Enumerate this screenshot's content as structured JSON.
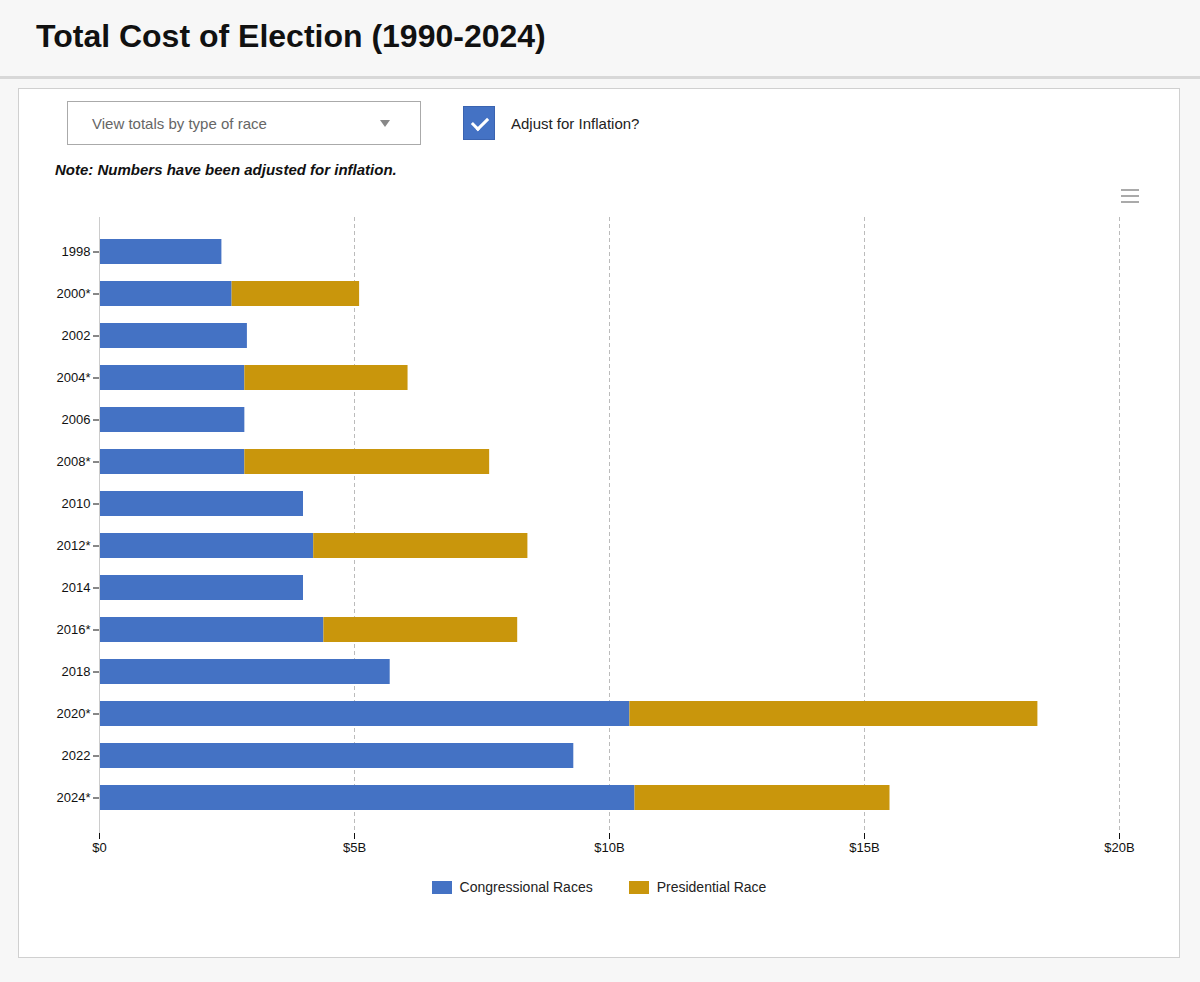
{
  "chart_data": {
    "type": "bar",
    "orientation": "horizontal",
    "stacked": true,
    "title": "Total Cost of Election (1990-2024)",
    "subtitle": "Note: Numbers have been adjusted for inflation.",
    "annotations": [
      "View totals by type of race",
      "Adjust for Inflation?"
    ],
    "categories": [
      "1998",
      "2000*",
      "2002",
      "2004*",
      "2006",
      "2008*",
      "2010",
      "2012*",
      "2014",
      "2016*",
      "2018",
      "2020*",
      "2022",
      "2024*"
    ],
    "series": [
      {
        "name": "Congressional Races",
        "color": "#4472c4",
        "values": [
          2.4,
          2.6,
          2.9,
          2.85,
          2.85,
          2.85,
          4.0,
          4.2,
          4.0,
          4.4,
          5.7,
          10.4,
          9.3,
          10.5
        ]
      },
      {
        "name": "Presidential Race",
        "color": "#c9960c",
        "values": [
          0.0,
          2.5,
          0.0,
          3.2,
          0.0,
          4.8,
          0.0,
          4.2,
          0.0,
          3.8,
          0.0,
          8.0,
          0.0,
          5.0
        ]
      }
    ],
    "xlim": [
      0,
      20
    ],
    "xticks": [
      {
        "value": 0,
        "label": "$0"
      },
      {
        "value": 5,
        "label": "$5B"
      },
      {
        "value": 10,
        "label": "$10B"
      },
      {
        "value": 15,
        "label": "$15B"
      },
      {
        "value": 20,
        "label": "$20B"
      }
    ],
    "grid": true,
    "legend": "bottom"
  }
}
